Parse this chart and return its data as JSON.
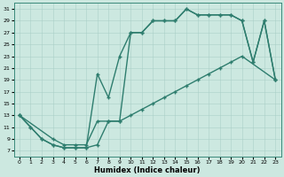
{
  "xlabel": "Humidex (Indice chaleur)",
  "bg_color": "#cce8e0",
  "line_color": "#2e7d6e",
  "grid_color": "#aacfc7",
  "line1_x": [
    0,
    1,
    2,
    3,
    4,
    5,
    6,
    7,
    8,
    9,
    10,
    11,
    12,
    13,
    14,
    15,
    16,
    17,
    18,
    19,
    20,
    21,
    22,
    23
  ],
  "line1_y": [
    13,
    11,
    9,
    8,
    7.5,
    7.5,
    7.5,
    8,
    12,
    12,
    27,
    27,
    29,
    29,
    29,
    31,
    30,
    30,
    30,
    30,
    29,
    22,
    29,
    19
  ],
  "line2_x": [
    0,
    1,
    2,
    3,
    4,
    5,
    6,
    7,
    8,
    9,
    10,
    11,
    12,
    13,
    14,
    15,
    16,
    17,
    18,
    19,
    20,
    21,
    22,
    23
  ],
  "line2_y": [
    13,
    11,
    9,
    8,
    7.5,
    7.5,
    7.5,
    20,
    16,
    23,
    27,
    27,
    29,
    29,
    29,
    31,
    30,
    30,
    30,
    30,
    29,
    22,
    29,
    19
  ],
  "line3_x": [
    0,
    3,
    4,
    5,
    6,
    7,
    8,
    9,
    10,
    11,
    12,
    13,
    14,
    15,
    16,
    17,
    18,
    19,
    20,
    23
  ],
  "line3_y": [
    13,
    9,
    8,
    8,
    8,
    12,
    12,
    12,
    13,
    14,
    15,
    16,
    17,
    18,
    19,
    20,
    21,
    22,
    23,
    19
  ],
  "xlim": [
    -0.5,
    23.5
  ],
  "ylim": [
    6,
    32
  ],
  "xticks": [
    0,
    1,
    2,
    3,
    4,
    5,
    6,
    7,
    8,
    9,
    10,
    11,
    12,
    13,
    14,
    15,
    16,
    17,
    18,
    19,
    20,
    21,
    22,
    23
  ],
  "yticks": [
    7,
    9,
    11,
    13,
    15,
    17,
    19,
    21,
    23,
    25,
    27,
    29,
    31
  ],
  "marker_size": 2,
  "linewidth": 1.0,
  "xlabel_fontsize": 6,
  "tick_fontsize": 4.5
}
